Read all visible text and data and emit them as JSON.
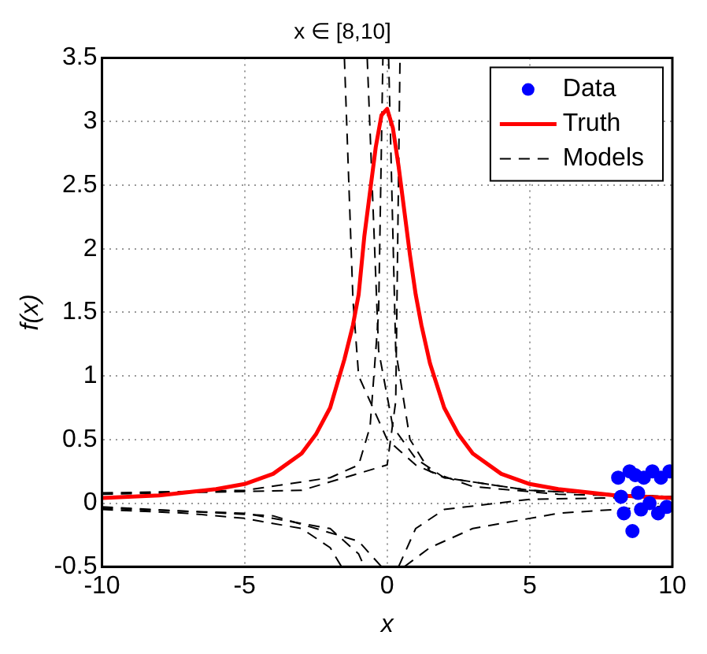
{
  "chart_data": {
    "type": "line",
    "title": "x ∈ [8,10]",
    "xlabel": "x",
    "ylabel": "f(x)",
    "xlim": [
      -10,
      10
    ],
    "xticks": [
      -10,
      -5,
      0,
      5,
      10
    ],
    "ylim": [
      -0.5,
      3.5
    ],
    "yticks": [
      -0.5,
      0,
      0.5,
      1,
      1.5,
      2,
      2.5,
      3,
      3.5
    ],
    "grid": true,
    "legend": "top right",
    "series": [
      {
        "type": "scatter",
        "name": "Data",
        "color": "#0000ff",
        "marker": "circle",
        "x": [
          8.1,
          8.3,
          8.5,
          8.7,
          8.6,
          9.0,
          9.3,
          9.5,
          9.6,
          9.9,
          8.2,
          8.9,
          9.2,
          9.8,
          8.8
        ],
        "values": [
          0.2,
          -0.08,
          0.25,
          0.22,
          -0.22,
          0.2,
          0.25,
          -0.08,
          0.2,
          0.25,
          0.05,
          -0.05,
          0.0,
          -0.03,
          0.08
        ]
      },
      {
        "type": "line",
        "name": "Truth",
        "color": "#ff0000",
        "line_style": "solid",
        "x": [
          -10,
          -8,
          -6,
          -5,
          -4,
          -3,
          -2.5,
          -2,
          -1.5,
          -1.2,
          -1,
          -0.8,
          -0.6,
          -0.4,
          -0.2,
          0,
          0.2,
          0.4,
          0.6,
          0.8,
          1,
          1.2,
          1.5,
          2,
          2.5,
          3,
          4,
          5,
          6,
          8,
          10
        ],
        "values": [
          0.04,
          0.06,
          0.11,
          0.15,
          0.23,
          0.39,
          0.54,
          0.75,
          1.13,
          1.4,
          1.64,
          2.1,
          2.45,
          2.8,
          3.05,
          3.1,
          2.95,
          2.65,
          2.3,
          1.95,
          1.64,
          1.4,
          1.1,
          0.75,
          0.54,
          0.39,
          0.23,
          0.15,
          0.11,
          0.06,
          0.04
        ]
      },
      {
        "type": "line",
        "name": "Models",
        "color": "#000000",
        "line_style": "dashed",
        "x": [
          -10,
          -7,
          -5,
          -3,
          -2,
          -1.6,
          -1.5,
          -1.2,
          -1,
          0,
          1,
          2,
          5,
          8,
          10
        ],
        "values": [
          -0.05,
          -0.08,
          -0.12,
          -0.2,
          -0.35,
          -0.5,
          3.5,
          1.6,
          1.0,
          0.5,
          0.3,
          0.2,
          0.1,
          0.07,
          0.05
        ]
      },
      {
        "type": "line",
        "color": "#000000",
        "line_style": "dashed",
        "x": [
          -10,
          -5,
          -2,
          -1,
          -0.6,
          -0.3,
          -0.15,
          0.4,
          1,
          2,
          5,
          10
        ],
        "values": [
          0.08,
          0.1,
          0.2,
          0.3,
          0.6,
          1.5,
          3.5,
          -0.5,
          -0.2,
          -0.05,
          0.03,
          0.05
        ]
      },
      {
        "type": "line",
        "color": "#000000",
        "line_style": "dashed",
        "x": [
          -10,
          -5,
          -2,
          -1,
          -0.8,
          -0.7,
          -0.3,
          0.2,
          1,
          2,
          5,
          10
        ],
        "values": [
          -0.04,
          -0.08,
          -0.2,
          -0.4,
          -0.5,
          3.5,
          1.2,
          0.6,
          0.35,
          0.2,
          0.1,
          0.05
        ]
      },
      {
        "type": "line",
        "color": "#000000",
        "line_style": "dashed",
        "x": [
          -10,
          -4,
          -1,
          -0.2,
          0.05,
          0.3,
          0.8,
          1.5,
          3,
          6,
          10
        ],
        "values": [
          -0.03,
          -0.1,
          -0.3,
          -0.5,
          3.5,
          1.2,
          0.5,
          0.25,
          0.13,
          0.07,
          0.05
        ]
      },
      {
        "type": "line",
        "color": "#000000",
        "line_style": "dashed",
        "x": [
          -10,
          -3,
          0,
          0.3,
          0.45,
          0.6,
          1.5,
          3,
          6,
          10
        ],
        "values": [
          0.07,
          0.1,
          0.3,
          0.8,
          3.5,
          -0.5,
          -0.35,
          -0.2,
          -0.08,
          -0.02
        ]
      }
    ]
  }
}
